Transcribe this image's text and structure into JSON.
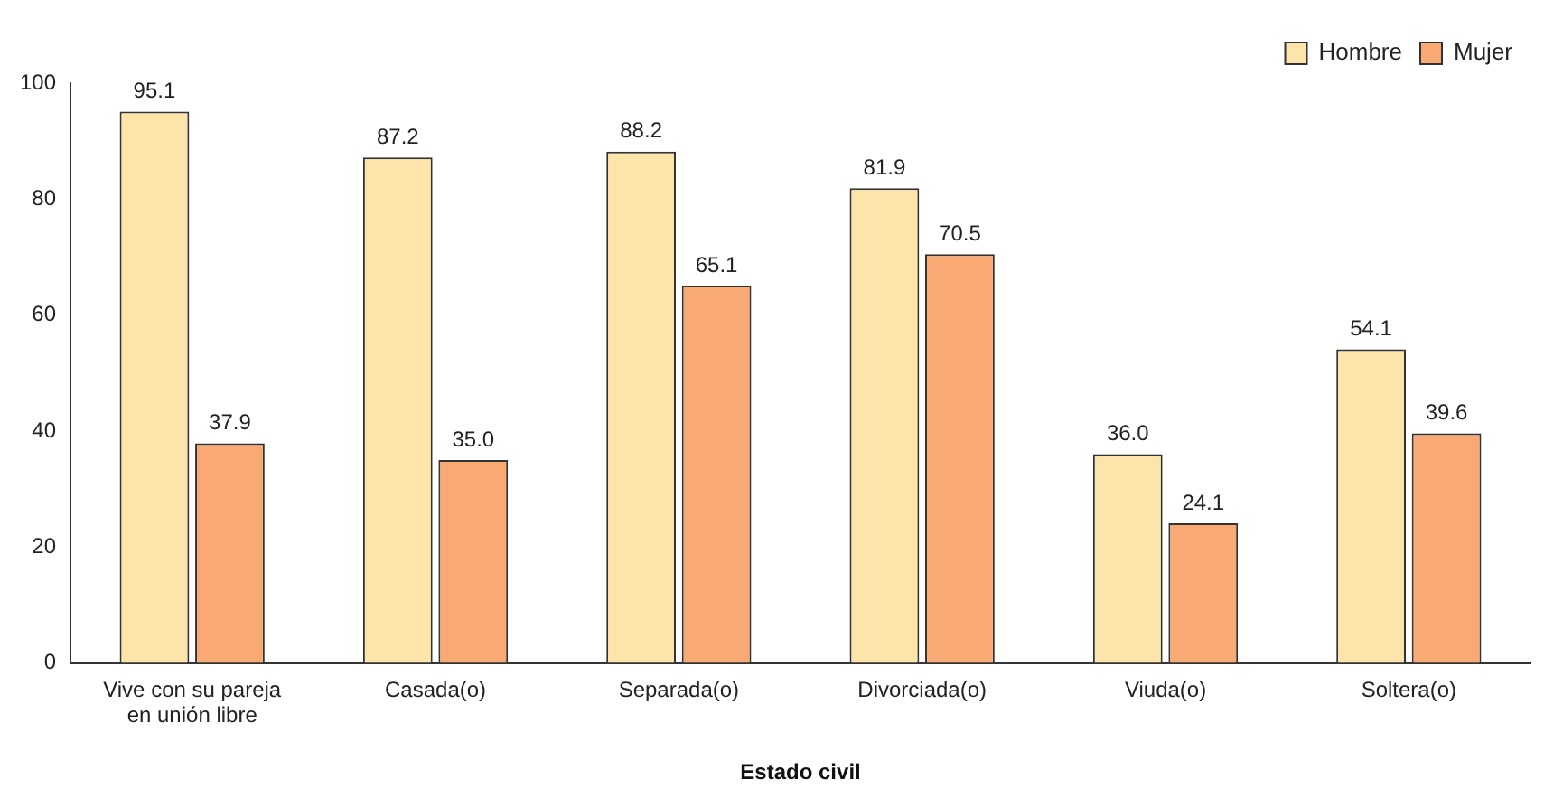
{
  "chart_data": {
    "type": "bar",
    "xlabel": "Estado civil",
    "categories": [
      "Vive con su pareja en unión libre",
      "Casada(o)",
      "Separada(o)",
      "Divorciada(o)",
      "Viuda(o)",
      "Soltera(o)"
    ],
    "series": [
      {
        "name": "Hombre",
        "color": "#fde4aa",
        "values": [
          95.1,
          87.2,
          88.2,
          81.9,
          36.0,
          54.1
        ],
        "value_labels": [
          "95.1",
          "87.2",
          "88.2",
          "81.9",
          "36.0",
          "54.1"
        ]
      },
      {
        "name": "Mujer",
        "color": "#f9aa74",
        "values": [
          37.9,
          35.0,
          65.1,
          70.5,
          24.1,
          39.6
        ],
        "value_labels": [
          "37.9",
          "35.0",
          "65.1",
          "70.5",
          "24.1",
          "39.6"
        ]
      }
    ],
    "ylim": [
      0,
      100
    ],
    "yticks": [
      0,
      20,
      40,
      60,
      80,
      100
    ],
    "grid": false,
    "legend": "top right"
  }
}
